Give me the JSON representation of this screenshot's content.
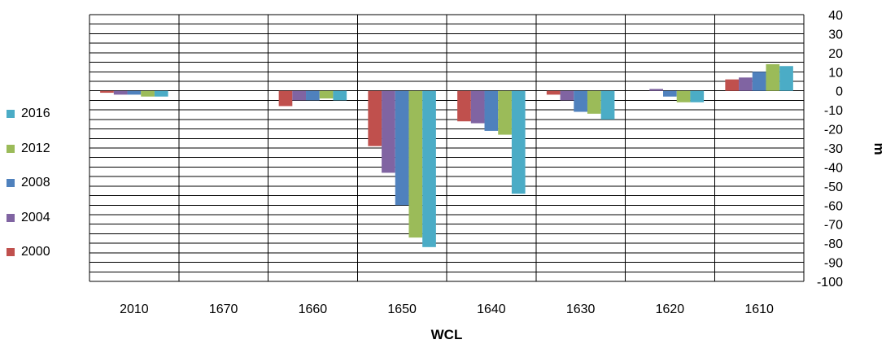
{
  "chart_data": {
    "type": "bar",
    "xlabel": "WCL",
    "ylabel": "m",
    "ylim": [
      -100,
      40
    ],
    "y_ticks": [
      40,
      30,
      20,
      10,
      0,
      -10,
      -20,
      -30,
      -40,
      -50,
      -60,
      -70,
      -80,
      -90,
      -100
    ],
    "grid": true,
    "y_axis_side": "right",
    "legend_position": "left",
    "categories": [
      "2010",
      "1670",
      "1660",
      "1650",
      "1640",
      "1630",
      "1620",
      "1610"
    ],
    "series": [
      {
        "name": "2000",
        "color": "#C0504D",
        "values": [
          -1,
          0,
          -8,
          -29,
          -16,
          -2,
          0,
          6
        ]
      },
      {
        "name": "2004",
        "color": "#8064A2",
        "values": [
          -2,
          0,
          -5,
          -43,
          -17,
          -5,
          1,
          7
        ]
      },
      {
        "name": "2008",
        "color": "#4F81BD",
        "values": [
          -2,
          0,
          -5,
          -60,
          -21,
          -11,
          -3,
          10
        ]
      },
      {
        "name": "2012",
        "color": "#9BBB59",
        "values": [
          -3,
          0,
          -4,
          -77,
          -23,
          -12,
          -6,
          14
        ]
      },
      {
        "name": "2016",
        "color": "#4BACC6",
        "values": [
          -3,
          0,
          -5,
          -82,
          -54,
          -15,
          -6,
          13
        ]
      }
    ]
  },
  "legend": {
    "items": [
      {
        "label": "2016",
        "color": "#4BACC6"
      },
      {
        "label": "2012",
        "color": "#9BBB59"
      },
      {
        "label": "2008",
        "color": "#4F81BD"
      },
      {
        "label": "2004",
        "color": "#8064A2"
      },
      {
        "label": "2000",
        "color": "#C0504D"
      }
    ]
  }
}
